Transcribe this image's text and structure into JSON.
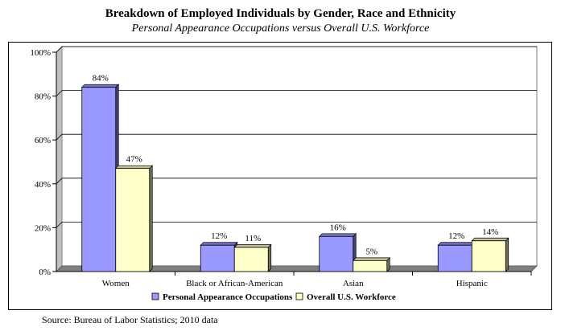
{
  "chart_data": {
    "type": "bar",
    "title": "Breakdown of Employed Individuals by Gender, Race and Ethnicity",
    "subtitle": "Personal Appearance Occupations versus Overall U.S. Workforce",
    "categories": [
      "Women",
      "Black or African-American",
      "Asian",
      "Hispanic"
    ],
    "series": [
      {
        "name": "Personal Appearance Occupations",
        "values": [
          84,
          12,
          16,
          12
        ],
        "labels": [
          "84%",
          "12%",
          "16%",
          "12%"
        ],
        "color": "#9999ff"
      },
      {
        "name": "Overall U.S. Workforce",
        "values": [
          47,
          11,
          5,
          14
        ],
        "labels": [
          "47%",
          "11%",
          "5%",
          "14%"
        ],
        "color": "#ffffcc"
      }
    ],
    "yticks": [
      "0%",
      "20%",
      "40%",
      "60%",
      "80%",
      "100%"
    ],
    "ylim": [
      0,
      100
    ],
    "grid": true,
    "legend": "bottom"
  },
  "source": "Source: Bureau of Labor Statistics; 2010 data"
}
